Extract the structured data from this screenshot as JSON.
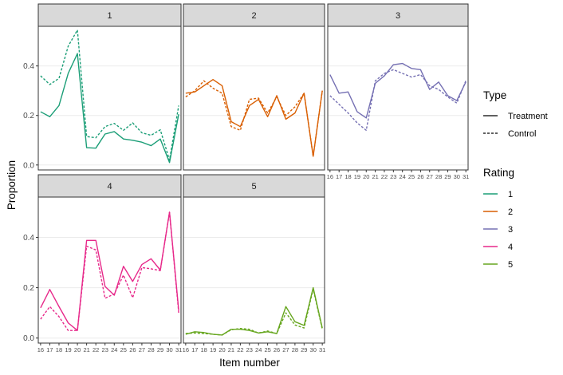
{
  "chart_data": {
    "type": "line",
    "xlabel": "Item number",
    "ylabel": "Proportion",
    "x": [
      16,
      17,
      18,
      19,
      20,
      21,
      22,
      23,
      24,
      25,
      26,
      27,
      28,
      29,
      30,
      31
    ],
    "ylim": [
      -0.02,
      0.56
    ],
    "yticks": [
      0.0,
      0.2,
      0.4
    ],
    "ytick_labels": [
      "0.0",
      "0.2",
      "0.4"
    ],
    "facets": [
      "1",
      "2",
      "3",
      "4",
      "5"
    ],
    "legend": {
      "type_title": "Type",
      "type_entries": [
        {
          "label": "Treatment",
          "dash": "solid"
        },
        {
          "label": "Control",
          "dash": "dashed"
        }
      ],
      "rating_title": "Rating",
      "rating_entries": [
        {
          "label": "1",
          "color": "#1b9e77"
        },
        {
          "label": "2",
          "color": "#d95f02"
        },
        {
          "label": "3",
          "color": "#7570b3"
        },
        {
          "label": "4",
          "color": "#e7298a"
        },
        {
          "label": "5",
          "color": "#66a61e"
        }
      ]
    },
    "series": [
      {
        "rating": "1",
        "type": "Treatment",
        "color": "#1b9e77",
        "values": [
          0.215,
          0.195,
          0.24,
          0.37,
          0.45,
          0.07,
          0.068,
          0.125,
          0.135,
          0.105,
          0.1,
          0.092,
          0.078,
          0.105,
          0.01,
          0.205
        ]
      },
      {
        "rating": "1",
        "type": "Control",
        "color": "#1b9e77",
        "values": [
          0.36,
          0.325,
          0.35,
          0.48,
          0.545,
          0.115,
          0.11,
          0.155,
          0.168,
          0.14,
          0.17,
          0.13,
          0.12,
          0.142,
          0.02,
          0.24
        ]
      },
      {
        "rating": "2",
        "type": "Treatment",
        "color": "#d95f02",
        "values": [
          0.29,
          0.295,
          0.32,
          0.345,
          0.32,
          0.175,
          0.155,
          0.24,
          0.265,
          0.195,
          0.28,
          0.185,
          0.21,
          0.29,
          0.035,
          0.3
        ]
      },
      {
        "rating": "2",
        "type": "Control",
        "color": "#d95f02",
        "values": [
          0.275,
          0.3,
          0.34,
          0.31,
          0.29,
          0.155,
          0.14,
          0.265,
          0.27,
          0.21,
          0.275,
          0.2,
          0.235,
          0.29,
          0.035,
          0.3
        ]
      },
      {
        "rating": "3",
        "type": "Treatment",
        "color": "#7570b3",
        "values": [
          0.365,
          0.29,
          0.295,
          0.215,
          0.19,
          0.33,
          0.36,
          0.405,
          0.41,
          0.39,
          0.385,
          0.305,
          0.335,
          0.28,
          0.26,
          0.335
        ]
      },
      {
        "rating": "3",
        "type": "Control",
        "color": "#7570b3",
        "values": [
          0.28,
          0.245,
          0.21,
          0.17,
          0.14,
          0.34,
          0.37,
          0.385,
          0.37,
          0.355,
          0.365,
          0.32,
          0.305,
          0.275,
          0.25,
          0.34
        ]
      },
      {
        "rating": "4",
        "type": "Treatment",
        "color": "#e7298a",
        "values": [
          0.12,
          0.193,
          0.125,
          0.06,
          0.03,
          0.388,
          0.388,
          0.205,
          0.17,
          0.285,
          0.225,
          0.292,
          0.315,
          0.27,
          0.5,
          0.11
        ]
      },
      {
        "rating": "4",
        "type": "Control",
        "color": "#e7298a",
        "values": [
          0.075,
          0.125,
          0.085,
          0.03,
          0.03,
          0.365,
          0.35,
          0.158,
          0.175,
          0.25,
          0.16,
          0.28,
          0.275,
          0.268,
          0.5,
          0.1
        ]
      },
      {
        "rating": "5",
        "type": "Treatment",
        "color": "#66a61e",
        "values": [
          0.015,
          0.025,
          0.022,
          0.015,
          0.012,
          0.035,
          0.035,
          0.03,
          0.02,
          0.025,
          0.018,
          0.125,
          0.065,
          0.05,
          0.2,
          0.04
        ]
      },
      {
        "rating": "5",
        "type": "Control",
        "color": "#66a61e",
        "values": [
          0.018,
          0.02,
          0.018,
          0.015,
          0.012,
          0.033,
          0.038,
          0.035,
          0.02,
          0.028,
          0.018,
          0.1,
          0.052,
          0.04,
          0.195,
          0.035
        ]
      }
    ]
  }
}
